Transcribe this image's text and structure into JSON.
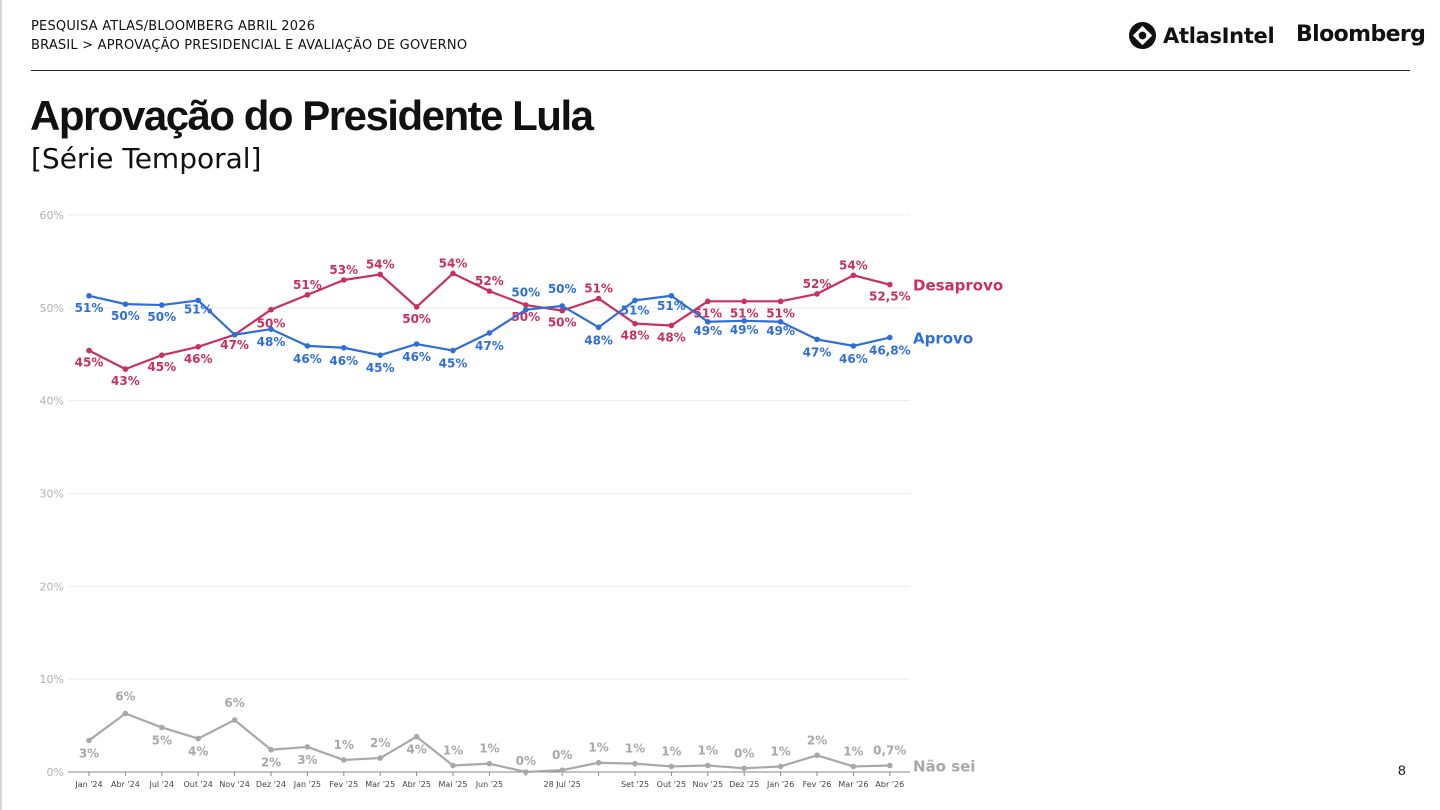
{
  "header": {
    "line1": "PESQUISA ATLAS/BLOOMBERG ABRIL 2026",
    "line2": "BRASIL > APROVAÇÃO PRESIDENCIAL E AVALIAÇÃO DE GOVERNO"
  },
  "logos": {
    "atlas": "AtlasIntel",
    "bloomberg": "Bloomberg"
  },
  "title": "Aprovação do Presidente Lula",
  "subtitle": "[Série Temporal]",
  "page_number": "8",
  "chart_data": {
    "type": "line",
    "ylim": [
      0,
      60
    ],
    "yticks": [
      "0%",
      "10%",
      "20%",
      "30%",
      "40%",
      "50%",
      "60%"
    ],
    "grid": true,
    "x": [
      "Jan '24",
      "Abr '24",
      "Jul '24",
      "Out '24",
      "Nov '24",
      "Dez '24",
      "Jan '25",
      "Fev '25",
      "Mar '25",
      "Abr '25",
      "Mai '25",
      "Jun '25",
      "",
      "28 Jul '25",
      "",
      "Set '25",
      "Out '25",
      "Nov '25",
      "Dez '25",
      "Jan '26",
      "Fev '26",
      "Mar '26",
      "Abr '26"
    ],
    "series": [
      {
        "name": "Desaprovo",
        "color": "#c8305f",
        "values": [
          45.4,
          43.4,
          44.9,
          45.8,
          47.1,
          49.8,
          51.4,
          53.0,
          53.6,
          50.1,
          53.7,
          51.8,
          50.3,
          49.7,
          51.0,
          48.3,
          48.1,
          50.7,
          50.7,
          50.7,
          51.5,
          53.5,
          52.5
        ],
        "labels": [
          "45%",
          "43%",
          "45%",
          "46%",
          "47%",
          "50%",
          "51%",
          "53%",
          "54%",
          "50%",
          "54%",
          "52%",
          "50%",
          "50%",
          "51%",
          "48%",
          "48%",
          "51%",
          "51%",
          "51%",
          "52%",
          "54%",
          "52,5%"
        ]
      },
      {
        "name": "Aprovo",
        "color": "#2f6ed8",
        "values": [
          51.3,
          50.4,
          50.3,
          50.8,
          47.1,
          47.7,
          45.9,
          45.7,
          44.9,
          46.1,
          45.4,
          47.3,
          49.8,
          50.2,
          47.9,
          50.8,
          51.3,
          48.5,
          48.6,
          48.5,
          46.6,
          45.9,
          46.8
        ],
        "labels": [
          "51%",
          "50%",
          "50%",
          "51%",
          "",
          "48%",
          "46%",
          "46%",
          "45%",
          "46%",
          "45%",
          "47%",
          "50%",
          "50%",
          "48%",
          "51%",
          "51%",
          "49%",
          "49%",
          "49%",
          "47%",
          "46%",
          "46,8%"
        ]
      },
      {
        "name": "Não sei",
        "color": "#a8a8a8",
        "values": [
          3.4,
          6.3,
          4.8,
          3.6,
          5.6,
          2.4,
          2.7,
          1.3,
          1.5,
          3.8,
          0.7,
          0.9,
          0.0,
          0.2,
          1.0,
          0.9,
          0.6,
          0.7,
          0.4,
          0.6,
          1.8,
          0.6,
          0.7
        ],
        "labels": [
          "3%",
          "6%",
          "5%",
          "4%",
          "6%",
          "2%",
          "3%",
          "1%",
          "2%",
          "4%",
          "1%",
          "1%",
          "0%",
          "0%",
          "1%",
          "1%",
          "1%",
          "1%",
          "0%",
          "1%",
          "2%",
          "1%",
          "0,7%"
        ]
      }
    ]
  }
}
